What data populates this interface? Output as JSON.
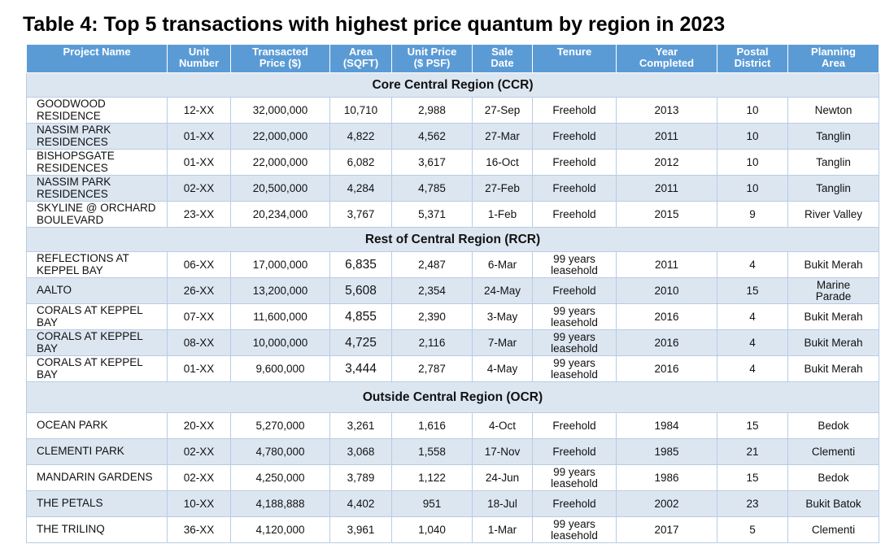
{
  "title": "Table 4: Top 5 transactions with highest price quantum by region in 2023",
  "headers": [
    [
      "Project Name"
    ],
    [
      "Unit",
      "Number"
    ],
    [
      "Transacted",
      "Price ($)"
    ],
    [
      "Area",
      "(SQFT)"
    ],
    [
      "Unit Price",
      "($ PSF)"
    ],
    [
      "Sale",
      "Date"
    ],
    [
      "Tenure"
    ],
    [
      "Year",
      "Completed"
    ],
    [
      "Postal",
      "District"
    ],
    [
      "Planning",
      "Area"
    ]
  ],
  "regions": [
    {
      "label": "Core Central Region (CCR)",
      "rows": [
        {
          "name": [
            "GOODWOOD",
            "RESIDENCE"
          ],
          "unit": "12-XX",
          "price": "32,000,000",
          "area": "10,710",
          "psf": "2,988",
          "date": "27-Sep",
          "tenure": [
            "Freehold"
          ],
          "year": "2013",
          "district": "10",
          "planning": [
            "Newton"
          ]
        },
        {
          "name": [
            "NASSIM PARK",
            "RESIDENCES"
          ],
          "unit": "01-XX",
          "price": "22,000,000",
          "area": "4,822",
          "psf": "4,562",
          "date": "27-Mar",
          "tenure": [
            "Freehold"
          ],
          "year": "2011",
          "district": "10",
          "planning": [
            "Tanglin"
          ]
        },
        {
          "name": [
            "BISHOPSGATE",
            "RESIDENCES"
          ],
          "unit": "01-XX",
          "price": "22,000,000",
          "area": "6,082",
          "psf": "3,617",
          "date": "16-Oct",
          "tenure": [
            "Freehold"
          ],
          "year": "2012",
          "district": "10",
          "planning": [
            "Tanglin"
          ]
        },
        {
          "name": [
            "NASSIM PARK",
            "RESIDENCES"
          ],
          "unit": "02-XX",
          "price": "20,500,000",
          "area": "4,284",
          "psf": "4,785",
          "date": "27-Feb",
          "tenure": [
            "Freehold"
          ],
          "year": "2011",
          "district": "10",
          "planning": [
            "Tanglin"
          ]
        },
        {
          "name": [
            "SKYLINE @ ORCHARD",
            "BOULEVARD"
          ],
          "unit": "23-XX",
          "price": "20,234,000",
          "area": "3,767",
          "psf": "5,371",
          "date": "1-Feb",
          "tenure": [
            "Freehold"
          ],
          "year": "2015",
          "district": "9",
          "planning": [
            "River Valley"
          ]
        }
      ]
    },
    {
      "label": "Rest of Central Region (RCR)",
      "rows": [
        {
          "name": [
            "REFLECTIONS AT",
            "KEPPEL BAY"
          ],
          "unit": "06-XX",
          "price": "17,000,000",
          "area": "6,835",
          "psf": "2,487",
          "date": "6-Mar",
          "tenure": [
            "99 years",
            "leasehold"
          ],
          "year": "2011",
          "district": "4",
          "planning": [
            "Bukit Merah"
          ]
        },
        {
          "name": [
            "AALTO"
          ],
          "unit": "26-XX",
          "price": "13,200,000",
          "area": "5,608",
          "psf": "2,354",
          "date": "24-May",
          "tenure": [
            "Freehold"
          ],
          "year": "2010",
          "district": "15",
          "planning": [
            "Marine",
            "Parade"
          ]
        },
        {
          "name": [
            "CORALS AT KEPPEL",
            "BAY"
          ],
          "unit": "07-XX",
          "price": "11,600,000",
          "area": "4,855",
          "psf": "2,390",
          "date": "3-May",
          "tenure": [
            "99 years",
            "leasehold"
          ],
          "year": "2016",
          "district": "4",
          "planning": [
            "Bukit Merah"
          ]
        },
        {
          "name": [
            "CORALS AT KEPPEL",
            "BAY"
          ],
          "unit": "08-XX",
          "price": "10,000,000",
          "area": "4,725",
          "psf": "2,116",
          "date": "7-Mar",
          "tenure": [
            "99 years",
            "leasehold"
          ],
          "year": "2016",
          "district": "4",
          "planning": [
            "Bukit Merah"
          ]
        },
        {
          "name": [
            "CORALS AT KEPPEL",
            "BAY"
          ],
          "unit": "01-XX",
          "price": "9,600,000",
          "area": "3,444",
          "psf": "2,787",
          "date": "4-May",
          "tenure": [
            "99 years",
            "leasehold"
          ],
          "year": "2016",
          "district": "4",
          "planning": [
            "Bukit Merah"
          ]
        }
      ]
    },
    {
      "label": "Outside Central Region (OCR)",
      "rows": [
        {
          "name": [
            "OCEAN PARK"
          ],
          "unit": "20-XX",
          "price": "5,270,000",
          "area": "3,261",
          "psf": "1,616",
          "date": "4-Oct",
          "tenure": [
            "Freehold"
          ],
          "year": "1984",
          "district": "15",
          "planning": [
            "Bedok"
          ]
        },
        {
          "name": [
            "CLEMENTI PARK"
          ],
          "unit": "02-XX",
          "price": "4,780,000",
          "area": "3,068",
          "psf": "1,558",
          "date": "17-Nov",
          "tenure": [
            "Freehold"
          ],
          "year": "1985",
          "district": "21",
          "planning": [
            "Clementi"
          ]
        },
        {
          "name": [
            "MANDARIN GARDENS"
          ],
          "unit": "02-XX",
          "price": "4,250,000",
          "area": "3,789",
          "psf": "1,122",
          "date": "24-Jun",
          "tenure": [
            "99 years",
            "leasehold"
          ],
          "year": "1986",
          "district": "15",
          "planning": [
            "Bedok"
          ]
        },
        {
          "name": [
            "THE PETALS"
          ],
          "unit": "10-XX",
          "price": "4,188,888",
          "area": "4,402",
          "psf": "951",
          "date": "18-Jul",
          "tenure": [
            "Freehold"
          ],
          "year": "2002",
          "district": "23",
          "planning": [
            "Bukit Batok"
          ]
        },
        {
          "name": [
            "THE TRILINQ"
          ],
          "unit": "36-XX",
          "price": "4,120,000",
          "area": "3,961",
          "psf": "1,040",
          "date": "1-Mar",
          "tenure": [
            "99 years",
            "leasehold"
          ],
          "year": "2017",
          "district": "5",
          "planning": [
            "Clementi"
          ]
        }
      ]
    }
  ]
}
